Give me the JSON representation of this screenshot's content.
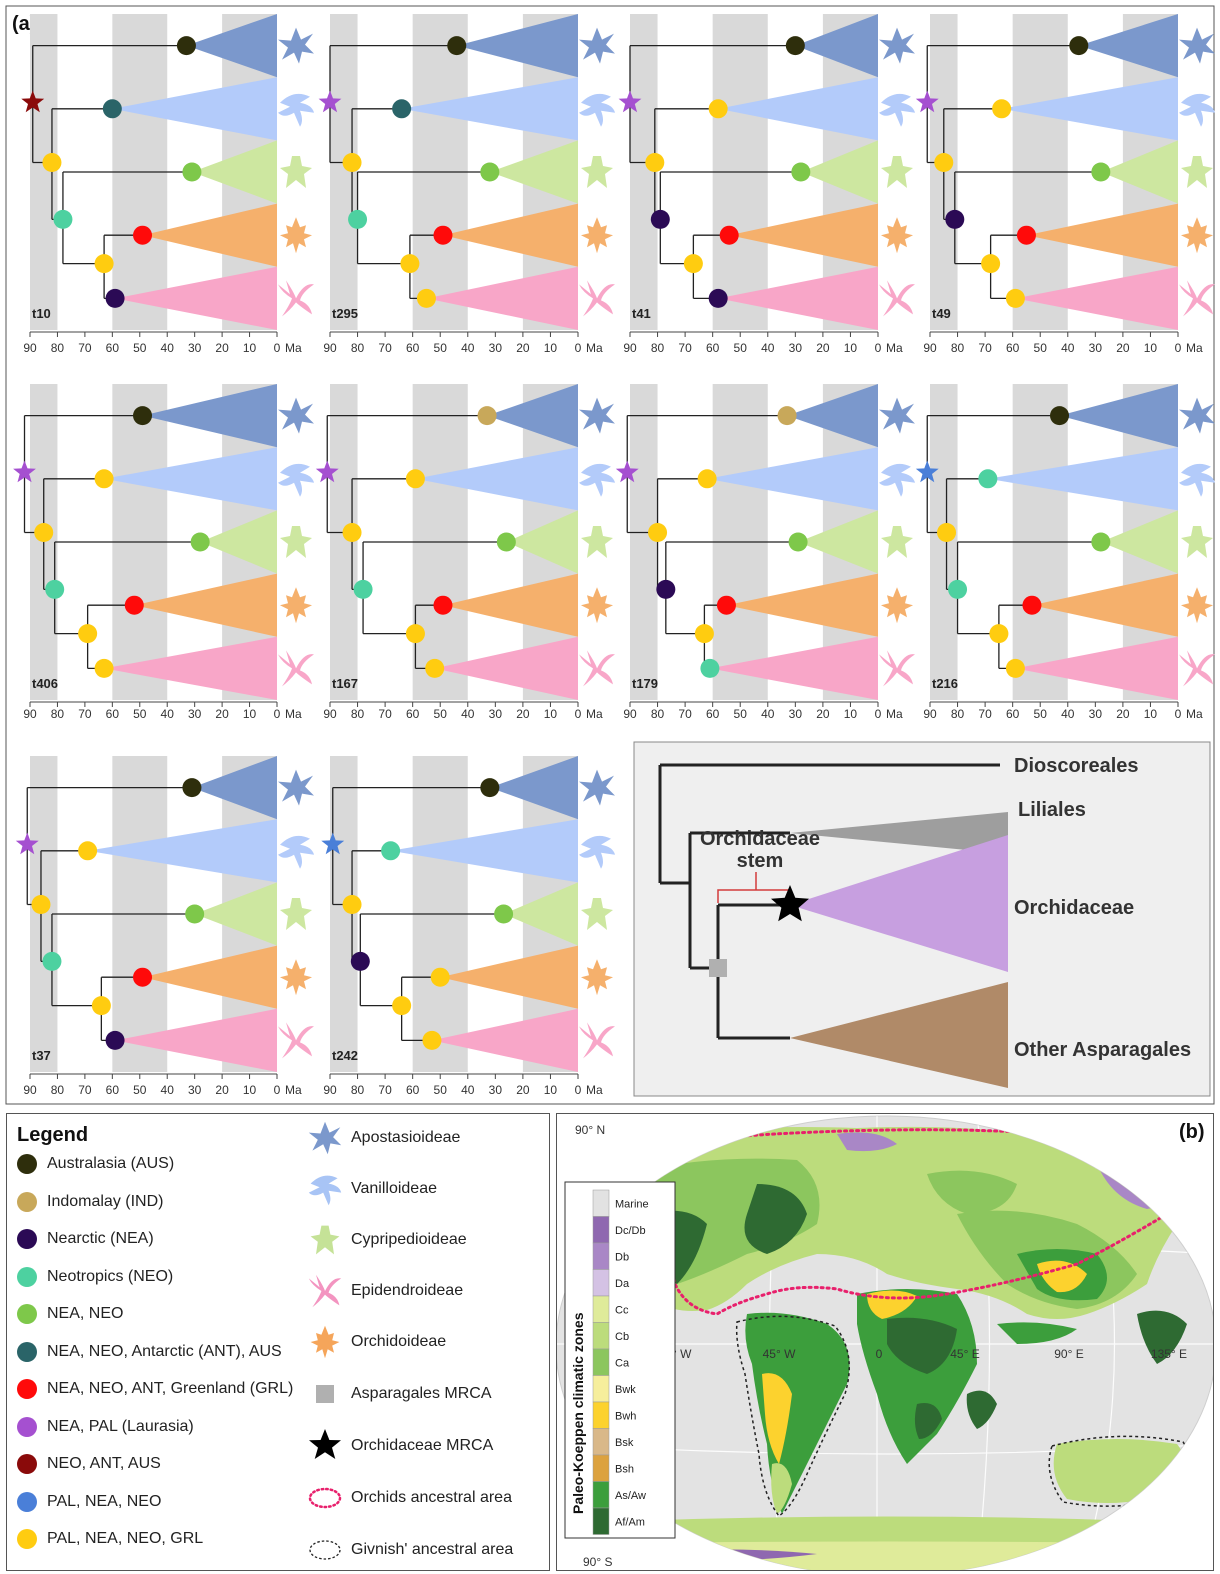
{
  "panel_a": {
    "label": "(a)",
    "axis_ticks": [
      "90",
      "80",
      "70",
      "60",
      "50",
      "40",
      "30",
      "20",
      "10",
      "0"
    ],
    "axis_unit": "Ma",
    "trees": [
      {
        "id": "t10",
        "root_type": "star",
        "nodes": {
          "root": "neo_ant_aus",
          "n1": "pal_nea_neo_grl",
          "n2": "neotropics",
          "n3": "pal_nea_neo_grl",
          "apo": "australasia",
          "van": "nea_neo_ant_aus",
          "cyp": "nea_neo",
          "orc": "nea_neo_ant_grl",
          "epi": "nearctic"
        },
        "ages": {
          "root": 89,
          "n1": 82,
          "n2": 78,
          "n3": 63,
          "apo": 33,
          "van": 60,
          "cyp": 31,
          "orc": 49,
          "epi": 59
        }
      },
      {
        "id": "t295",
        "root_type": "star",
        "nodes": {
          "root": "nea_pal",
          "n1": "pal_nea_neo_grl",
          "n2": "neotropics",
          "n3": "pal_nea_neo_grl",
          "apo": "australasia",
          "van": "nea_neo_ant_aus",
          "cyp": "nea_neo",
          "orc": "nea_neo_ant_grl",
          "epi": "pal_nea_neo_grl"
        },
        "ages": {
          "root": 90,
          "n1": 82,
          "n2": 80,
          "n3": 61,
          "apo": 44,
          "van": 64,
          "cyp": 32,
          "orc": 49,
          "epi": 55
        }
      },
      {
        "id": "t41",
        "root_type": "star",
        "nodes": {
          "root": "nea_pal",
          "n1": "pal_nea_neo_grl",
          "n2": "nearctic",
          "n3": "pal_nea_neo_grl",
          "apo": "australasia",
          "van": "pal_nea_neo_grl",
          "cyp": "nea_neo",
          "orc": "nea_neo_ant_grl",
          "epi": "nearctic"
        },
        "ages": {
          "root": 90,
          "n1": 81,
          "n2": 79,
          "n3": 67,
          "apo": 30,
          "van": 58,
          "cyp": 28,
          "orc": 54,
          "epi": 58
        }
      },
      {
        "id": "t49",
        "root_type": "star",
        "nodes": {
          "root": "nea_pal",
          "n1": "pal_nea_neo_grl",
          "n2": "nearctic",
          "n3": "pal_nea_neo_grl",
          "apo": "australasia",
          "van": "pal_nea_neo_grl",
          "cyp": "nea_neo",
          "orc": "nea_neo_ant_grl",
          "epi": "pal_nea_neo_grl"
        },
        "ages": {
          "root": 91,
          "n1": 85,
          "n2": 81,
          "n3": 68,
          "apo": 36,
          "van": 64,
          "cyp": 28,
          "orc": 55,
          "epi": 59
        }
      },
      {
        "id": "t406",
        "root_type": "star",
        "nodes": {
          "root": "nea_pal",
          "n1": "pal_nea_neo_grl",
          "n2": "neotropics",
          "n3": "pal_nea_neo_grl",
          "n4": "pal_nea_neo_grl",
          "apo": "australasia",
          "van": "pal_nea_neo_grl",
          "cyp": "nea_neo",
          "orc": "nea_neo_ant_grl",
          "epi": "pal_nea_neo_grl"
        },
        "ages": {
          "root": 92,
          "n1": 85,
          "n2": 81,
          "n3": 69,
          "apo": 49,
          "van": 63,
          "cyp": 28,
          "orc": 52,
          "epi": 63
        }
      },
      {
        "id": "t167",
        "root_type": "star",
        "nodes": {
          "root": "nea_pal",
          "n1": "pal_nea_neo_grl",
          "n2": "neotropics",
          "n3": "pal_nea_neo_grl",
          "apo": "indomalay",
          "van": "pal_nea_neo_grl",
          "cyp": "nea_neo",
          "orc": "nea_neo_ant_grl",
          "epi": "pal_nea_neo_grl"
        },
        "ages": {
          "root": 91,
          "n1": 82,
          "n2": 78,
          "n3": 59,
          "apo": 33,
          "van": 59,
          "cyp": 26,
          "orc": 49,
          "epi": 52
        }
      },
      {
        "id": "t179",
        "root_type": "star",
        "nodes": {
          "root": "nea_pal",
          "n1": "pal_nea_neo_grl",
          "n2": "nearctic",
          "n3": "pal_nea_neo_grl",
          "apo": "indomalay",
          "van": "pal_nea_neo_grl",
          "cyp": "nea_neo",
          "orc": "nea_neo_ant_grl",
          "epi": "neotropics"
        },
        "ages": {
          "root": 91,
          "n1": 80,
          "n2": 77,
          "n3": 63,
          "apo": 33,
          "van": 62,
          "cyp": 29,
          "orc": 55,
          "epi": 61
        }
      },
      {
        "id": "t216",
        "root_type": "star",
        "nodes": {
          "root": "pal_nea_neo",
          "n1": "pal_nea_neo_grl",
          "n2": "neotropics",
          "n3": "pal_nea_neo_grl",
          "apo": "australasia",
          "van": "neotropics",
          "cyp": "nea_neo",
          "orc": "nea_neo_ant_grl",
          "epi": "pal_nea_neo_grl"
        },
        "ages": {
          "root": 91,
          "n1": 84,
          "n2": 80,
          "n3": 65,
          "apo": 43,
          "van": 69,
          "cyp": 28,
          "orc": 53,
          "epi": 59
        }
      },
      {
        "id": "t37",
        "root_type": "star",
        "nodes": {
          "root": "nea_pal",
          "n1": "pal_nea_neo_grl",
          "n2": "neotropics",
          "n3": "pal_nea_neo_grl",
          "apo": "australasia",
          "van": "pal_nea_neo_grl",
          "cyp": "nea_neo",
          "orc": "nea_neo_ant_grl",
          "epi": "nearctic"
        },
        "ages": {
          "root": 91,
          "n1": 86,
          "n2": 82,
          "n3": 64,
          "apo": 31,
          "van": 69,
          "cyp": 30,
          "orc": 49,
          "epi": 59
        }
      },
      {
        "id": "t242",
        "root_type": "star",
        "nodes": {
          "root": "pal_nea_neo",
          "n1": "pal_nea_neo_grl",
          "n2": "nearctic",
          "n3": "pal_nea_neo_grl",
          "apo": "australasia",
          "van": "neotropics",
          "cyp": "nea_neo",
          "orc": "pal_nea_neo_grl",
          "epi": "pal_nea_neo_grl"
        },
        "ages": {
          "root": 89,
          "n1": 82,
          "n2": 79,
          "n3": 64,
          "apo": 32,
          "van": 68,
          "cyp": 27,
          "orc": 50,
          "epi": 53
        }
      }
    ],
    "clade_colors": {
      "apo": "#7b98cc",
      "van": "#b3cbfa",
      "cyp": "#cde7a0",
      "orc": "#f5b06c",
      "epi": "#f8a6c8"
    }
  },
  "schematic": {
    "dioscoreales": "Dioscoreales",
    "liliales": "Liliales",
    "orchidaceae": "Orchidaceae",
    "other_asparagales": "Other Asparagales",
    "stem_line1": "Orchidaceae",
    "stem_line2": "stem",
    "colors": {
      "liliales": "#9e9e9e",
      "orchidaceae": "#c79fe0",
      "other": "#b08a68",
      "background": "#efefef",
      "mrca_square": "#b0b0b0",
      "stem_bracket": "#d43b3b"
    }
  },
  "legend": {
    "title": "Legend",
    "areas": [
      {
        "key": "australasia",
        "label": "Australasia (AUS)",
        "color": "#2e2e0c"
      },
      {
        "key": "indomalay",
        "label": "Indomalay (IND)",
        "color": "#c8a85a"
      },
      {
        "key": "nearctic",
        "label": "Nearctic (NEA)",
        "color": "#2b0a55"
      },
      {
        "key": "neotropics",
        "label": "Neotropics (NEO)",
        "color": "#4dd1a0"
      },
      {
        "key": "nea_neo",
        "label": "NEA, NEO",
        "color": "#7ec84a"
      },
      {
        "key": "nea_neo_ant_aus",
        "label": "NEA, NEO, Antarctic (ANT), AUS",
        "color": "#2a6468"
      },
      {
        "key": "nea_neo_ant_grl",
        "label": "NEA, NEO, ANT, Greenland (GRL)",
        "color": "#ff0a0a"
      },
      {
        "key": "nea_pal",
        "label": "NEA, PAL (Laurasia)",
        "color": "#a550d0"
      },
      {
        "key": "neo_ant_aus",
        "label": "NEO, ANT, AUS",
        "color": "#8a0a0a"
      },
      {
        "key": "pal_nea_neo",
        "label": "PAL, NEA, NEO",
        "color": "#4a7fd8"
      },
      {
        "key": "pal_nea_neo_grl",
        "label": "PAL, NEA, NEO, GRL",
        "color": "#ffcc10"
      }
    ],
    "clades": [
      {
        "key": "apo",
        "label": "Apostasioideae",
        "color": "#7b98cc",
        "icon": "apostasioideae-icon"
      },
      {
        "key": "van",
        "label": "Vanilloideae",
        "color": "#a8c4f5",
        "icon": "vanilloideae-icon"
      },
      {
        "key": "cyp",
        "label": "Cypripedioideae",
        "color": "#c5e297",
        "icon": "cypripedioideae-icon"
      },
      {
        "key": "epi",
        "label": "Epidendroideae",
        "color": "#f394c0",
        "icon": "epidendroideae-icon"
      },
      {
        "key": "orc",
        "label": "Orchidoideae",
        "color": "#f5a55a",
        "icon": "orchidoideae-icon"
      }
    ],
    "symbols": [
      {
        "label": "Asparagales MRCA",
        "icon": "grey-square-icon"
      },
      {
        "label": "Orchidaceae MRCA",
        "icon": "black-star-icon"
      },
      {
        "label": "Orchids ancestral area",
        "icon": "red-dotted-outline-icon"
      },
      {
        "label": "Givnish' ancestral area",
        "icon": "black-dotted-outline-icon"
      }
    ]
  },
  "map": {
    "label": "(b)",
    "north": "90° N",
    "south": "90° S",
    "lon_labels": [
      "90° W",
      "45° W",
      "0",
      "45° E",
      "90° E",
      "135° E"
    ],
    "colorbar_title": "Paleo-Koeppen climatic zones",
    "zones": [
      {
        "label": "Marine",
        "color": "#e2e2e2"
      },
      {
        "label": "Dc/Db",
        "color": "#8f68b0"
      },
      {
        "label": "Db",
        "color": "#a987c6"
      },
      {
        "label": "Da",
        "color": "#d4c2e4"
      },
      {
        "label": "Cc",
        "color": "#dfeb9a"
      },
      {
        "label": "Cb",
        "color": "#bcdc7c"
      },
      {
        "label": "Ca",
        "color": "#8cc65e"
      },
      {
        "label": "Bwk",
        "color": "#f6ee9c"
      },
      {
        "label": "Bwh",
        "color": "#fcd22e"
      },
      {
        "label": "Bsk",
        "color": "#d9b889"
      },
      {
        "label": "Bsh",
        "color": "#dca23f"
      },
      {
        "label": "As/Aw",
        "color": "#3c9e3c"
      },
      {
        "label": "Af/Am",
        "color": "#2e6a32"
      }
    ]
  }
}
